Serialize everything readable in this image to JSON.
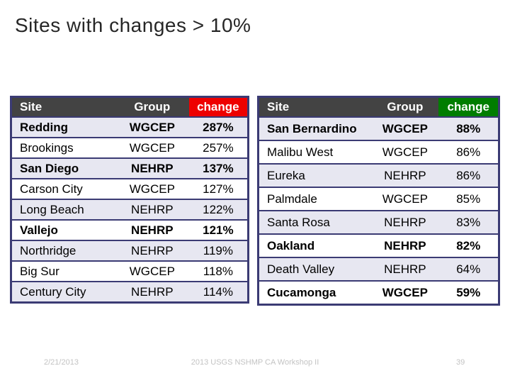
{
  "slide": {
    "title": "Sites with changes > 10%",
    "footer": {
      "date": "2/21/2013",
      "center": "2013 USGS NSHMP CA Workshop II",
      "page": "39"
    },
    "colors": {
      "header_bg": "#434343",
      "border_navy": "#3b3b74",
      "row_stripe": "#e7e7f1",
      "change_header_left": "#ee0000",
      "change_header_right": "#007d00"
    }
  },
  "tables": [
    {
      "name": "changes-over-100",
      "columns": [
        "Site",
        "Group",
        "change"
      ],
      "change_header_color": "#ee0000",
      "rows": [
        {
          "site": "Redding",
          "group": "WGCEP",
          "change": "287%",
          "bold": true
        },
        {
          "site": "Brookings",
          "group": "WGCEP",
          "change": "257%",
          "bold": false
        },
        {
          "site": "San Diego",
          "group": "NEHRP",
          "change": "137%",
          "bold": true
        },
        {
          "site": "Carson City",
          "group": "WGCEP",
          "change": "127%",
          "bold": false
        },
        {
          "site": "Long Beach",
          "group": "NEHRP",
          "change": "122%",
          "bold": false
        },
        {
          "site": "Vallejo",
          "group": "NEHRP",
          "change": "121%",
          "bold": true
        },
        {
          "site": "Northridge",
          "group": "NEHRP",
          "change": "119%",
          "bold": false
        },
        {
          "site": "Big Sur",
          "group": "WGCEP",
          "change": "118%",
          "bold": false
        },
        {
          "site": "Century City",
          "group": "NEHRP",
          "change": "114%",
          "bold": false
        }
      ]
    },
    {
      "name": "changes-under-100",
      "columns": [
        "Site",
        "Group",
        "change"
      ],
      "change_header_color": "#007d00",
      "rows": [
        {
          "site": "San Bernardino",
          "group": "WGCEP",
          "change": "88%",
          "bold": true
        },
        {
          "site": "Malibu West",
          "group": "WGCEP",
          "change": "86%",
          "bold": false
        },
        {
          "site": "Eureka",
          "group": "NEHRP",
          "change": "86%",
          "bold": false
        },
        {
          "site": "Palmdale",
          "group": "WGCEP",
          "change": "85%",
          "bold": false
        },
        {
          "site": "Santa Rosa",
          "group": "NEHRP",
          "change": "83%",
          "bold": false
        },
        {
          "site": "Oakland",
          "group": "NEHRP",
          "change": "82%",
          "bold": true
        },
        {
          "site": "Death Valley",
          "group": "NEHRP",
          "change": "64%",
          "bold": false
        },
        {
          "site": "Cucamonga",
          "group": "WGCEP",
          "change": "59%",
          "bold": true
        }
      ]
    }
  ]
}
